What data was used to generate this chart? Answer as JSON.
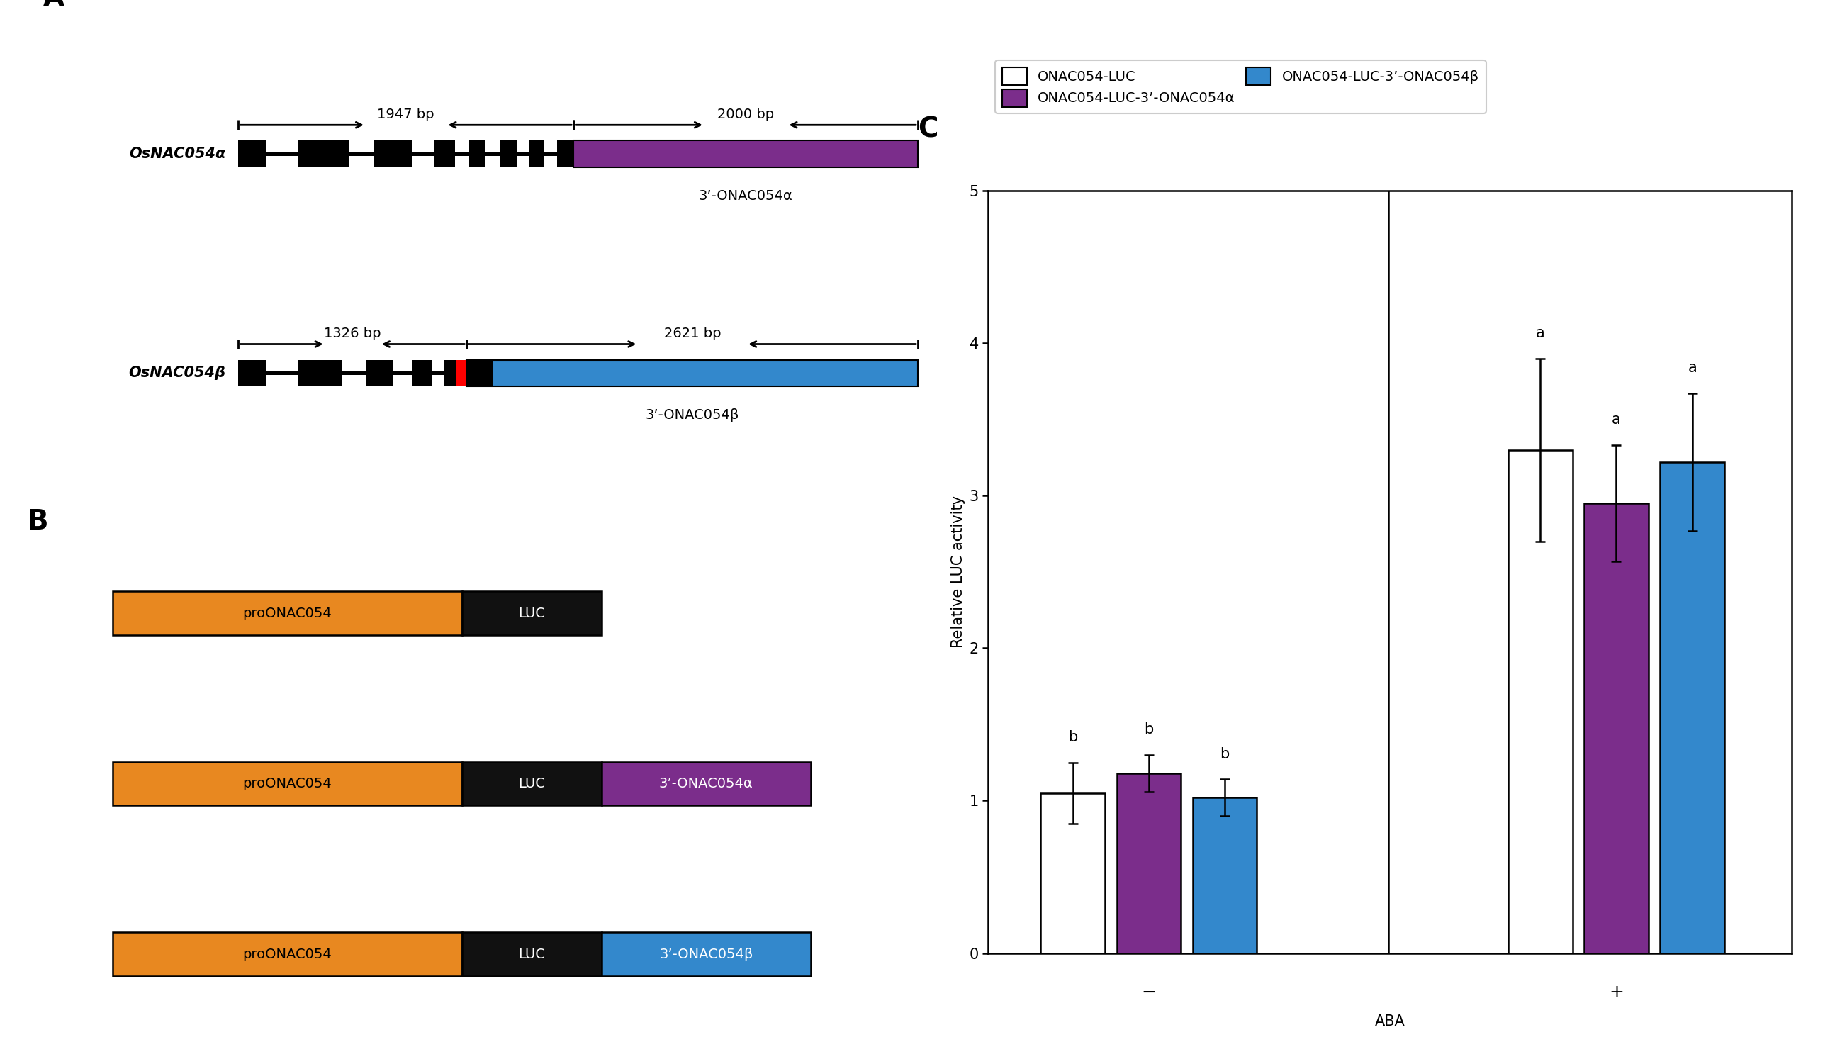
{
  "panel_A": {
    "alpha_label": "OsNAC054α",
    "beta_label": "OsNAC054β",
    "alpha_bp_left": "1947 bp",
    "alpha_bp_right": "2000 bp",
    "beta_bp_left": "1326 bp",
    "beta_bp_right": "2621 bp",
    "alpha_3prime_label": "3’-ONAC054α",
    "beta_3prime_label": "3’-ONAC054β",
    "alpha_3utr_color": "#7B2D8B",
    "beta_3utr_color": "#3388CC",
    "beta_insert_color": "#FF0000"
  },
  "panel_B": {
    "pro_color": "#E88820",
    "luc_color": "#111111",
    "alpha_3utr_color": "#7B2D8B",
    "beta_3utr_color": "#3388CC"
  },
  "panel_C": {
    "bar_values": [
      1.05,
      1.18,
      1.02,
      3.3,
      2.95,
      3.22
    ],
    "bar_errors": [
      0.2,
      0.12,
      0.12,
      0.6,
      0.38,
      0.45
    ],
    "bar_colors": [
      "#FFFFFF",
      "#7B2D8B",
      "#3388CC",
      "#FFFFFF",
      "#7B2D8B",
      "#3388CC"
    ],
    "letters": [
      "b",
      "b",
      "b",
      "a",
      "a",
      "a"
    ],
    "group_labels": [
      "-",
      "+"
    ],
    "xlabel": "ABA",
    "ylabel": "Relative LUC activity",
    "ylim": [
      0,
      5
    ],
    "yticks": [
      0,
      1,
      2,
      3,
      4,
      5
    ],
    "legend_labels": [
      "ONAC054-LUC",
      "ONAC054-LUC-3’-ONAC054α",
      "ONAC054-LUC-3’-ONAC054β"
    ],
    "legend_colors": [
      "#FFFFFF",
      "#7B2D8B",
      "#3388CC"
    ]
  },
  "bg_color": "#FFFFFF"
}
